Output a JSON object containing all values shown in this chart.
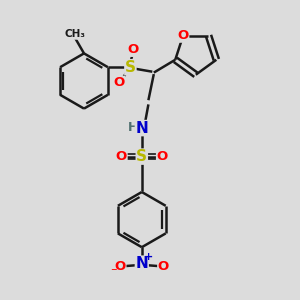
{
  "background_color": "#dcdcdc",
  "bond_color": "#1a1a1a",
  "colors": {
    "S": "#b8b800",
    "O": "#ff0000",
    "N_amine": "#0000cc",
    "H": "#507070",
    "NO2_N": "#0000cc",
    "NO2_O": "#ff0000"
  },
  "lw": 1.8,
  "lw_double_inner": 1.6,
  "figsize": [
    3.0,
    3.0
  ],
  "dpi": 100,
  "xlim": [
    0,
    10
  ],
  "ylim": [
    0,
    10
  ]
}
